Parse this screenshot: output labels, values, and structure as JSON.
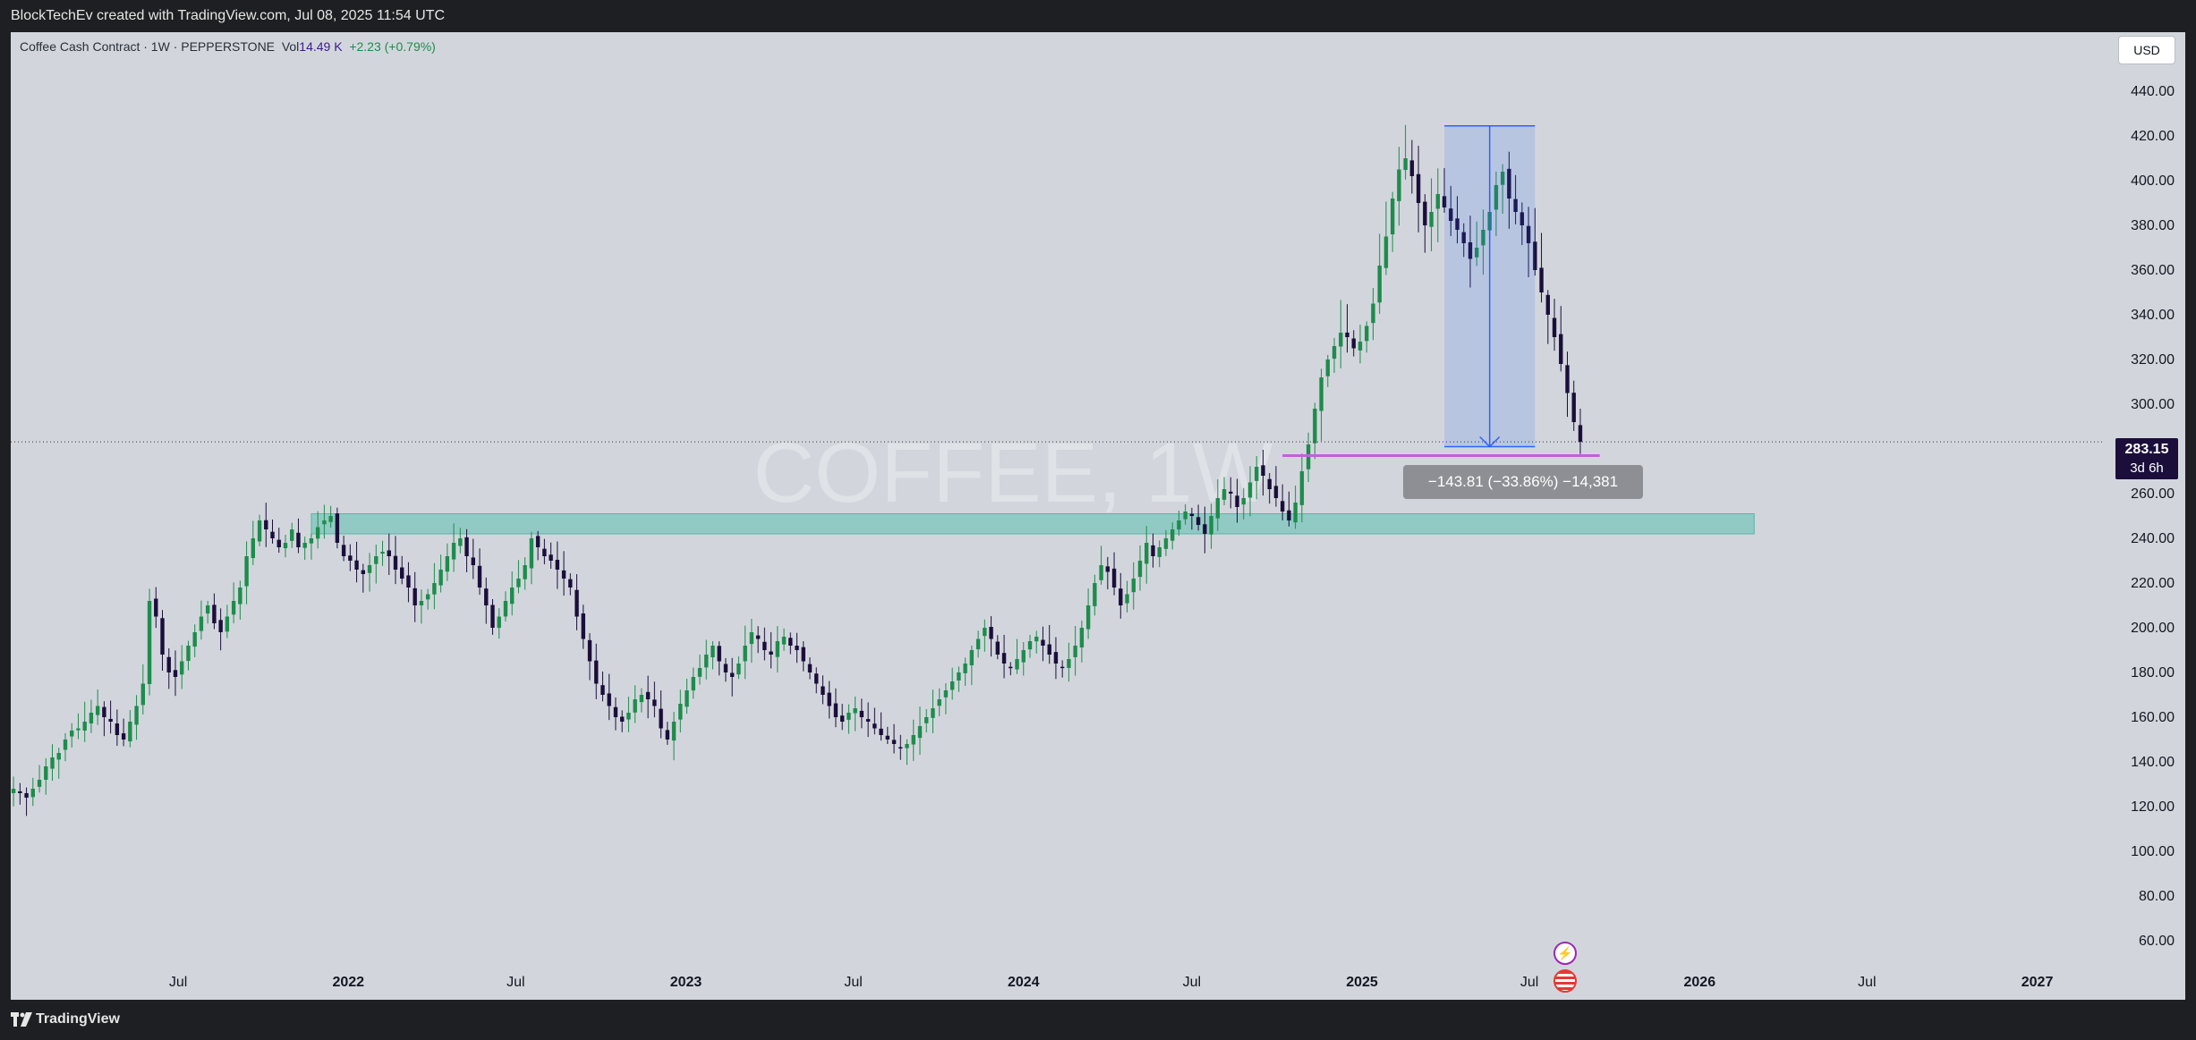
{
  "header": {
    "credit": "BlockTechEv created with TradingView.com, Jul 08, 2025 11:54 UTC"
  },
  "legend": {
    "symbol": "Coffee Cash Contract · 1W · PEPPERSTONE",
    "vol_label": "Vol",
    "vol_value": "14.49 K",
    "change": "+2.23 (+0.79%)"
  },
  "currency_button": "USD",
  "price_tag": {
    "price": "283.15",
    "countdown": "3d 6h"
  },
  "measure": {
    "label": "−143.81 (−33.86%) −14,381"
  },
  "watermark": "COFFEE, 1W",
  "footer": {
    "brand": "TradingView"
  },
  "colors": {
    "up": "#1e8c4c",
    "down": "#1b0e3b",
    "zone": "#7bc6bc",
    "measure": "#2962ff",
    "support_line": "#c060d8",
    "background": "#d2d6dc"
  },
  "icons": [
    "flash-event-icon",
    "us-flag-event-icon",
    "tradingview-logo-icon"
  ],
  "chart_data": {
    "type": "candlestick",
    "yaxis": {
      "ticks": [
        "60.00",
        "80.00",
        "100.00",
        "120.00",
        "140.00",
        "160.00",
        "180.00",
        "200.00",
        "220.00",
        "240.00",
        "260.00",
        "280.00",
        "300.00",
        "320.00",
        "340.00",
        "360.00",
        "380.00",
        "400.00",
        "420.00",
        "440.00"
      ],
      "range": [
        52,
        450
      ]
    },
    "xaxis": {
      "ticks": [
        "Jul",
        "2022",
        "Jul",
        "2023",
        "Jul",
        "2024",
        "Jul",
        "2025",
        "Jul",
        "2026",
        "Jul",
        "2027"
      ],
      "range": [
        "2021-01-01",
        "2027-03-15"
      ]
    },
    "current_price": 283.15,
    "support_zone": {
      "from": "2021-11-22",
      "to": "2026-03-01",
      "low": 242,
      "high": 251
    },
    "support_line": {
      "from": "2024-10-07",
      "to": "2025-09-15",
      "value": 277
    },
    "measure": {
      "from": "2025-03-31",
      "to": "2025-07-07",
      "high": 424.5,
      "low": 281.0
    },
    "series_closes": [
      128,
      126,
      124,
      128,
      132,
      138,
      142,
      144,
      150,
      154,
      155,
      158,
      162,
      165,
      160,
      158,
      152,
      150,
      158,
      165,
      175,
      212,
      205,
      188,
      180,
      178,
      185,
      192,
      198,
      205,
      210,
      202,
      198,
      205,
      212,
      218,
      232,
      240,
      248,
      244,
      240,
      236,
      238,
      244,
      236,
      238,
      240,
      245,
      248,
      250,
      238,
      232,
      230,
      226,
      224,
      228,
      232,
      234,
      232,
      226,
      222,
      218,
      210,
      212,
      215,
      220,
      226,
      232,
      238,
      240,
      232,
      228,
      218,
      210,
      200,
      205,
      212,
      218,
      222,
      228,
      240,
      236,
      232,
      230,
      226,
      222,
      218,
      205,
      195,
      185,
      175,
      170,
      165,
      160,
      158,
      162,
      168,
      170,
      168,
      165,
      155,
      150,
      158,
      166,
      172,
      178,
      182,
      188,
      192,
      185,
      180,
      178,
      184,
      192,
      198,
      195,
      190,
      188,
      194,
      196,
      192,
      190,
      185,
      180,
      175,
      170,
      165,
      160,
      158,
      162,
      164,
      160,
      158,
      155,
      152,
      150,
      148,
      146,
      148,
      152,
      156,
      160,
      164,
      168,
      172,
      176,
      180,
      184,
      190,
      195,
      200,
      195,
      188,
      184,
      182,
      186,
      190,
      194,
      196,
      192,
      188,
      184,
      182,
      186,
      192,
      200,
      210,
      220,
      228,
      225,
      218,
      210,
      215,
      222,
      230,
      238,
      232,
      236,
      240,
      244,
      248,
      252,
      250,
      246,
      242,
      250,
      258,
      262,
      260,
      254,
      258,
      265,
      272,
      268,
      262,
      258,
      252,
      248,
      256,
      270,
      282,
      298,
      312,
      320,
      326,
      332,
      330,
      325,
      328,
      335,
      345,
      362,
      375,
      392,
      405,
      410,
      402,
      390,
      380,
      386,
      394,
      388,
      382,
      378,
      372,
      365,
      370,
      378,
      386,
      398,
      404,
      392,
      386,
      380,
      372,
      360,
      350,
      340,
      330,
      318,
      305,
      292,
      283.15
    ],
    "series_start": "2021-01-04",
    "series_interval": "1W"
  }
}
